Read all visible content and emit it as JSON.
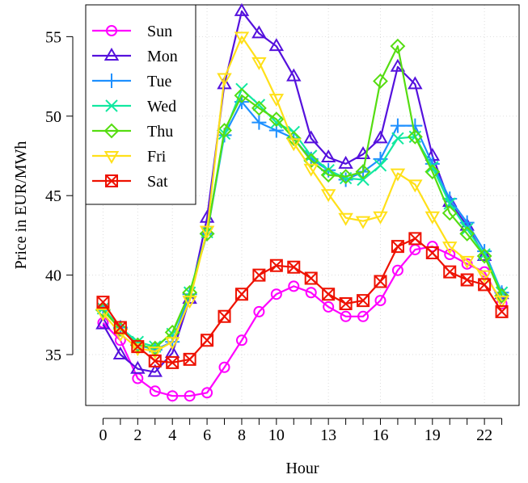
{
  "chart_data": {
    "type": "line",
    "title": "",
    "xlabel": "Hour",
    "ylabel": "Price in EUR/MWh",
    "x": [
      0,
      1,
      2,
      3,
      4,
      5,
      6,
      7,
      8,
      9,
      10,
      11,
      12,
      13,
      14,
      15,
      16,
      17,
      18,
      19,
      20,
      21,
      22,
      23
    ],
    "xticks": [
      0,
      2,
      4,
      6,
      8,
      10,
      13,
      16,
      19,
      22
    ],
    "yticks": [
      35,
      40,
      45,
      50,
      55
    ],
    "xlim": [
      -1,
      24
    ],
    "ylim": [
      31.8,
      57.0
    ],
    "grid": true,
    "legend_position": "top-left",
    "series": [
      {
        "name": "Sun",
        "color": "#FF00FF",
        "marker": "circle",
        "values": [
          37.0,
          35.9,
          33.5,
          32.7,
          32.4,
          32.4,
          32.6,
          34.2,
          35.9,
          37.7,
          38.8,
          39.3,
          38.9,
          38.0,
          37.4,
          37.4,
          38.4,
          40.3,
          41.6,
          41.8,
          41.3,
          40.7,
          40.2,
          38.2
        ]
      },
      {
        "name": "Mon",
        "color": "#5511DD",
        "marker": "triangle-up",
        "values": [
          36.9,
          35.0,
          34.1,
          33.9,
          35.1,
          38.5,
          43.6,
          52.0,
          56.6,
          55.2,
          54.4,
          52.5,
          48.6,
          47.4,
          47.0,
          47.6,
          48.6,
          53.1,
          52.0,
          47.5,
          44.6,
          43.1,
          41.2,
          38.8
        ]
      },
      {
        "name": "Tue",
        "color": "#1E90FF",
        "marker": "plus",
        "values": [
          37.8,
          36.7,
          35.6,
          35.3,
          35.8,
          38.8,
          42.6,
          48.8,
          50.9,
          49.6,
          49.1,
          48.6,
          47.3,
          46.6,
          46.0,
          46.5,
          47.3,
          49.4,
          49.4,
          47.0,
          44.8,
          43.3,
          41.5,
          38.9
        ]
      },
      {
        "name": "Wed",
        "color": "#11E8A0",
        "marker": "x",
        "values": [
          37.9,
          36.7,
          35.8,
          35.5,
          36.3,
          38.9,
          42.7,
          48.9,
          51.7,
          50.7,
          49.6,
          49.0,
          47.5,
          46.6,
          46.1,
          46.0,
          46.9,
          48.6,
          48.7,
          46.8,
          44.5,
          42.9,
          41.3,
          38.9
        ]
      },
      {
        "name": "Thu",
        "color": "#55DD11",
        "marker": "diamond",
        "values": [
          37.8,
          36.6,
          35.6,
          35.4,
          36.4,
          38.9,
          42.6,
          49.1,
          51.3,
          50.5,
          49.8,
          48.6,
          47.2,
          46.3,
          46.2,
          46.5,
          52.2,
          54.4,
          48.7,
          46.5,
          43.9,
          42.6,
          41.2,
          38.7
        ]
      },
      {
        "name": "Fri",
        "color": "#FFE019",
        "marker": "triangle-down",
        "values": [
          37.6,
          36.3,
          35.4,
          35.2,
          35.8,
          38.4,
          42.8,
          52.4,
          55.0,
          53.4,
          51.1,
          48.3,
          46.7,
          45.1,
          43.6,
          43.4,
          43.7,
          46.4,
          45.7,
          43.7,
          41.8,
          40.9,
          40.0,
          38.4
        ]
      },
      {
        "name": "Sat",
        "color": "#EE1100",
        "marker": "boxed-x",
        "values": [
          38.3,
          36.7,
          35.5,
          34.6,
          34.5,
          34.7,
          35.9,
          37.4,
          38.8,
          40.0,
          40.6,
          40.5,
          39.8,
          38.8,
          38.2,
          38.4,
          39.6,
          41.8,
          42.3,
          41.4,
          40.2,
          39.7,
          39.4,
          37.7
        ]
      }
    ]
  }
}
